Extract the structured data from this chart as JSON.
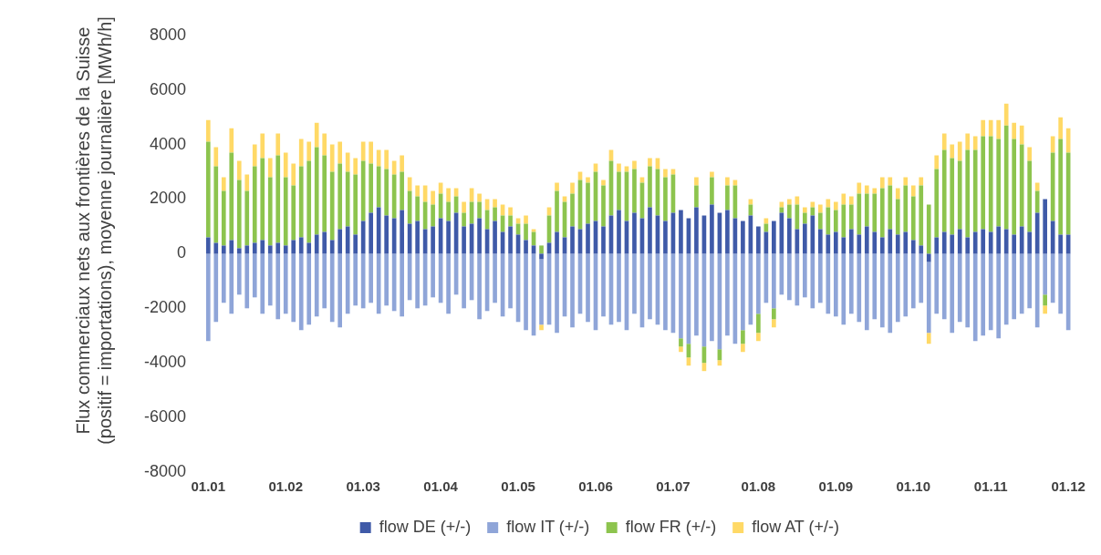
{
  "chart_data": {
    "type": "bar",
    "stacked": true,
    "ylabel": "Flux commerciaux nets aux frontières de la Suisse (positif = importations), moyenne journalière [MWh/h]",
    "categories": [
      "01.01",
      null,
      null,
      null,
      null,
      null,
      null,
      null,
      null,
      null,
      "01.02",
      null,
      null,
      null,
      null,
      null,
      null,
      null,
      null,
      null,
      "01.03",
      null,
      null,
      null,
      null,
      null,
      null,
      null,
      null,
      null,
      "01.04",
      null,
      null,
      null,
      null,
      null,
      null,
      null,
      null,
      null,
      "01.05",
      null,
      null,
      null,
      null,
      null,
      null,
      null,
      null,
      null,
      "01.06",
      null,
      null,
      null,
      null,
      null,
      null,
      null,
      null,
      null,
      "01.07",
      null,
      null,
      null,
      null,
      null,
      null,
      null,
      null,
      null,
      null,
      "01.08",
      null,
      null,
      null,
      null,
      null,
      null,
      null,
      null,
      null,
      "01.09",
      null,
      null,
      null,
      null,
      null,
      null,
      null,
      null,
      null,
      "01.10",
      null,
      null,
      null,
      null,
      null,
      null,
      null,
      null,
      null,
      "01.11",
      null,
      null,
      null,
      null,
      null,
      null,
      null,
      null,
      null,
      "01.12"
    ],
    "series": [
      {
        "name": "flow DE (+/-)",
        "color": "#3f5aa8",
        "values": [
          600,
          400,
          300,
          500,
          200,
          300,
          400,
          500,
          300,
          400,
          300,
          500,
          600,
          400,
          700,
          800,
          500,
          900,
          1000,
          700,
          1200,
          1500,
          1700,
          1400,
          1300,
          1600,
          1100,
          1200,
          900,
          1000,
          1300,
          1200,
          1500,
          1000,
          1100,
          1300,
          900,
          1200,
          800,
          1000,
          700,
          500,
          300,
          -200,
          400,
          800,
          600,
          1000,
          900,
          1100,
          1200,
          1000,
          1400,
          1600,
          1200,
          1500,
          1300,
          1700,
          1400,
          1200,
          1500,
          1600,
          1300,
          1700,
          1400,
          1800,
          1500,
          1600,
          1300,
          1200,
          1400,
          1000,
          800,
          1200,
          1500,
          1300,
          900,
          1100,
          1400,
          900,
          700,
          800,
          600,
          900,
          700,
          1000,
          800,
          600,
          900,
          700,
          800,
          500,
          300,
          -300,
          600,
          800,
          700,
          900,
          600,
          800,
          900,
          800,
          1000,
          900,
          700,
          1000,
          800,
          1500,
          2000,
          1200,
          700,
          700
        ]
      },
      {
        "name": "flow IT (+/-)",
        "color": "#8fa5d8",
        "values": [
          -3200,
          -2500,
          -1800,
          -2200,
          -1500,
          -2000,
          -1600,
          -2200,
          -1900,
          -2400,
          -2200,
          -2500,
          -2800,
          -2600,
          -2300,
          -2000,
          -2500,
          -2700,
          -2200,
          -1900,
          -2000,
          -1800,
          -2200,
          -1900,
          -2100,
          -2300,
          -1700,
          -2000,
          -1900,
          -1600,
          -1800,
          -2200,
          -1500,
          -2000,
          -1700,
          -2400,
          -2100,
          -1800,
          -2300,
          -2000,
          -2500,
          -2800,
          -3000,
          -2400,
          -2600,
          -2900,
          -2300,
          -2700,
          -2200,
          -2500,
          -2800,
          -2300,
          -2600,
          -2500,
          -2800,
          -2200,
          -2700,
          -2400,
          -2600,
          -2800,
          -2900,
          -3100,
          -3300,
          -3000,
          -3400,
          -3200,
          -3500,
          -3000,
          -3300,
          -2800,
          -2600,
          -2200,
          -1800,
          -2000,
          -1500,
          -1700,
          -1900,
          -1600,
          -2000,
          -1800,
          -2200,
          -2300,
          -2600,
          -2200,
          -2500,
          -2800,
          -2400,
          -2700,
          -2900,
          -2500,
          -2300,
          -2000,
          -1800,
          -2600,
          -2200,
          -2400,
          -2900,
          -2500,
          -2700,
          -3200,
          -3000,
          -2800,
          -3100,
          -2600,
          -2400,
          -2200,
          -2000,
          -2700,
          -1500,
          -1800,
          -2200,
          -2800
        ]
      },
      {
        "name": "flow FR (+/-)",
        "color": "#8dc44e",
        "values": [
          3500,
          2800,
          2000,
          3200,
          2500,
          2000,
          2800,
          3000,
          2500,
          3200,
          2500,
          2000,
          2600,
          3000,
          3200,
          2800,
          2500,
          2400,
          2000,
          2200,
          2200,
          1800,
          1500,
          1700,
          1600,
          1400,
          1200,
          900,
          1000,
          800,
          900,
          700,
          600,
          500,
          800,
          600,
          700,
          500,
          600,
          400,
          400,
          600,
          500,
          300,
          1000,
          1500,
          1300,
          1200,
          1800,
          1500,
          1800,
          1500,
          2000,
          1400,
          1800,
          1600,
          1300,
          1500,
          1700,
          1600,
          1400,
          -300,
          -500,
          800,
          -600,
          1000,
          -400,
          900,
          1200,
          -500,
          400,
          -700,
          300,
          -400,
          200,
          500,
          900,
          400,
          300,
          600,
          1000,
          800,
          1200,
          900,
          1500,
          1200,
          1400,
          1800,
          1600,
          1300,
          1700,
          1600,
          2200,
          1800,
          2500,
          3000,
          2800,
          2500,
          3200,
          3000,
          3400,
          3500,
          3200,
          3800,
          3500,
          3000,
          2600,
          800,
          -400,
          2500,
          3500,
          3000
        ]
      },
      {
        "name": "flow AT (+/-)",
        "color": "#ffd966",
        "values": [
          800,
          700,
          500,
          900,
          700,
          600,
          800,
          900,
          700,
          800,
          900,
          800,
          1000,
          700,
          900,
          800,
          1000,
          800,
          700,
          600,
          700,
          800,
          600,
          700,
          500,
          600,
          500,
          400,
          600,
          500,
          400,
          500,
          300,
          400,
          500,
          300,
          400,
          300,
          400,
          300,
          200,
          300,
          100,
          -200,
          300,
          300,
          200,
          400,
          300,
          200,
          300,
          200,
          400,
          300,
          200,
          300,
          200,
          300,
          400,
          300,
          200,
          -200,
          -300,
          300,
          -300,
          200,
          -200,
          300,
          200,
          -300,
          200,
          -300,
          200,
          -300,
          200,
          200,
          300,
          200,
          200,
          300,
          300,
          300,
          400,
          300,
          400,
          300,
          200,
          400,
          300,
          400,
          300,
          400,
          300,
          -400,
          500,
          600,
          500,
          700,
          600,
          500,
          600,
          600,
          700,
          800,
          600,
          700,
          500,
          300,
          -300,
          600,
          800,
          900
        ]
      }
    ],
    "ylim": [
      -8000,
      8000
    ],
    "yticks": [
      -8000,
      -6000,
      -4000,
      -2000,
      0,
      2000,
      4000,
      6000,
      8000
    ],
    "grid": false,
    "legend": "bottom"
  }
}
